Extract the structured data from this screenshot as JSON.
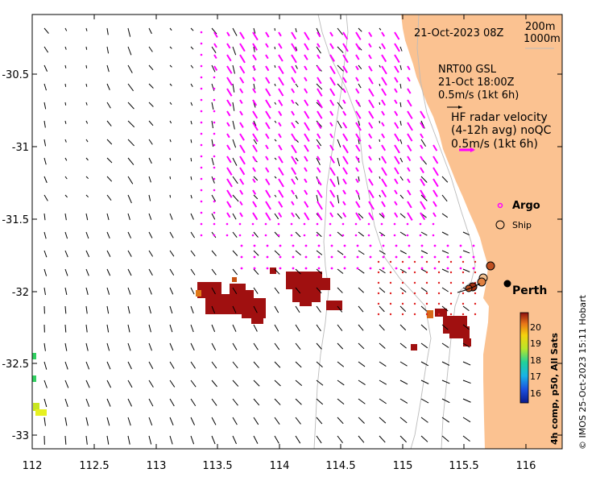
{
  "map": {
    "timestamp": "21-Oct-2023 08Z",
    "bathymetry_contours": [
      "200m",
      "1000m"
    ],
    "model_label": "NRT00 GSL",
    "model_time": "21-Oct 18:00Z",
    "model_scale": "0.5m/s (1kt 6h)",
    "radar_title_1": "HF radar velocity",
    "radar_title_2": "(4-12h avg) noQC",
    "radar_scale": "0.5m/s (1kt 6h)",
    "legend": {
      "argo": "Argo",
      "ship": "Ship"
    },
    "place": "Perth",
    "colorbar": {
      "title": "4h comp, p50, All Sats",
      "ticks": [
        "20",
        "19",
        "18",
        "17",
        "16"
      ]
    },
    "credit": "© IMOS 25-Oct-2023 15:11 Hobart",
    "x_ticks": [
      "112",
      "112.5",
      "113",
      "113.5",
      "114",
      "114.5",
      "115",
      "115.5",
      "116"
    ],
    "y_ticks": [
      "-30.5",
      "-31",
      "-31.5",
      "-32",
      "-32.5",
      "-33"
    ],
    "colors": {
      "land": "#fbc291",
      "radar_vectors": "#ff00ff",
      "model_vectors": "#000000",
      "sst_hot": "#a01010",
      "contours": "#bbbbbb"
    }
  }
}
